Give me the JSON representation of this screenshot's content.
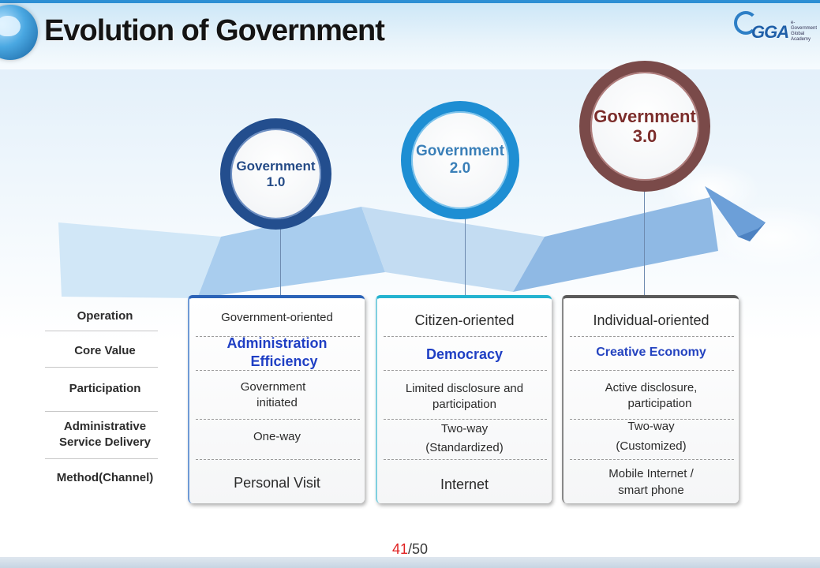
{
  "title": "Evolution of Government",
  "logo": {
    "text": "GGA",
    "subtitle": "e-Government Global Academy"
  },
  "stages": [
    {
      "line1": "Government",
      "line2": "1.0"
    },
    {
      "line1": "Government",
      "line2": "2.0"
    },
    {
      "line1": "Government",
      "line2": "3.0"
    }
  ],
  "row_labels": {
    "operation": "Operation",
    "core_value": "Core Value",
    "participation": "Participation",
    "delivery_1": "Administrative",
    "delivery_2": "Service Delivery",
    "method": "Method(Channel)"
  },
  "columns": [
    {
      "operation": "Government-oriented",
      "core_value_1": "Administration",
      "core_value_2": "Efficiency",
      "participation_1": "Government",
      "participation_2": "initiated",
      "delivery_1": "One-way",
      "delivery_2": "",
      "method_1": "Personal Visit",
      "method_2": ""
    },
    {
      "operation": "Citizen-oriented",
      "core_value_1": "Democracy",
      "core_value_2": "",
      "participation_1": "Limited disclosure and",
      "participation_2": "participation",
      "delivery_1": "Two-way",
      "delivery_2": "(Standardized)",
      "method_1": "Internet",
      "method_2": ""
    },
    {
      "operation": "Individual-oriented",
      "core_value_1": "Creative Economy",
      "core_value_2": "",
      "participation_1": "Active disclosure,",
      "participation_2": "participation",
      "delivery_1": "Two-way",
      "delivery_2": "(Customized)",
      "method_1": "Mobile Internet /",
      "method_2": "smart phone"
    }
  ],
  "page": {
    "current": "41",
    "total": "/50"
  },
  "colors": {
    "stage1": "#234e8e",
    "stage2": "#1e8ed3",
    "stage3": "#7a4a49",
    "core_value": "#1f3fc4",
    "page_current": "#e02020"
  }
}
